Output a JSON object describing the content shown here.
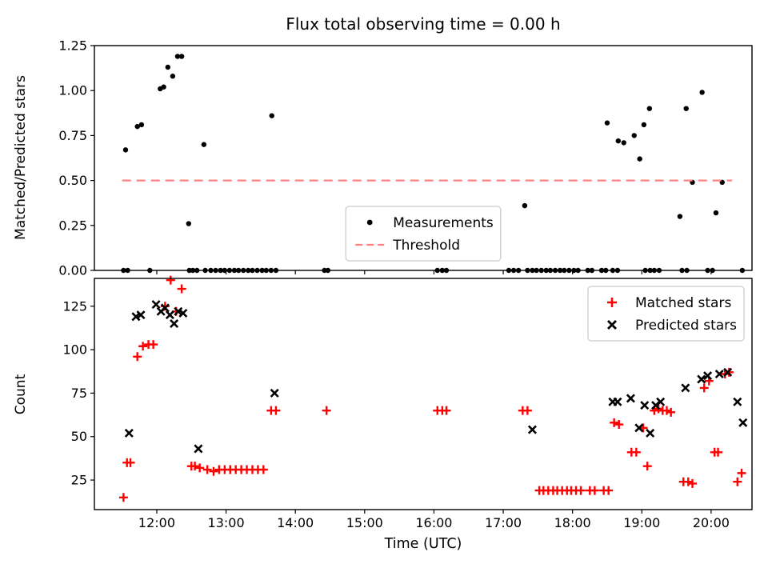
{
  "figure": {
    "title": "Flux total observing time = 0.00 h",
    "xlabel": "Time (UTC)",
    "x_tick_labels": [
      "12:00",
      "13:00",
      "14:00",
      "15:00",
      "16:00",
      "17:00",
      "18:00",
      "19:00",
      "20:00"
    ],
    "x_tick_values": [
      12,
      13,
      14,
      15,
      16,
      17,
      18,
      19,
      20
    ],
    "x_range": [
      11.1,
      20.59
    ],
    "background": "#ffffff",
    "axis_color": "#000000"
  },
  "chart_data": [
    {
      "type": "scatter",
      "name": "ratio-plot",
      "title": "Flux total observing time = 0.00 h",
      "ylabel": "Matched/Predicted stars",
      "ylim": [
        0,
        1.25
      ],
      "y_tick_values": [
        0,
        0.25,
        0.5,
        0.75,
        1.0,
        1.25
      ],
      "y_tick_labels": [
        "0.00",
        "0.25",
        "0.50",
        "0.75",
        "1.00",
        "1.25"
      ],
      "legend_position": "lower-center",
      "grid": false,
      "series": [
        {
          "name": "Measurements",
          "marker": "dot",
          "color": "#000000",
          "x": [
            11.52,
            11.58,
            11.9,
            12.47,
            12.52,
            12.58,
            12.7,
            12.78,
            12.85,
            12.92,
            12.98,
            13.05,
            13.12,
            13.18,
            13.25,
            13.32,
            13.38,
            13.45,
            13.52,
            13.58,
            13.65,
            13.72,
            14.42,
            14.47,
            16.05,
            16.12,
            16.18,
            17.08,
            17.15,
            17.22,
            17.35,
            17.42,
            17.48,
            17.55,
            17.62,
            17.68,
            17.75,
            17.82,
            17.88,
            17.95,
            18.02,
            18.08,
            18.22,
            18.28,
            18.42,
            18.48,
            18.58,
            18.65,
            19.05,
            19.12,
            19.18,
            19.25,
            19.58,
            19.65,
            19.95,
            20.02,
            20.45,
            11.55,
            11.72,
            11.78,
            12.05,
            12.1,
            12.16,
            12.23,
            12.3,
            12.36,
            12.46,
            12.68,
            13.66,
            17.31,
            18.5,
            18.66,
            18.74,
            18.89,
            18.97,
            19.03,
            19.11,
            19.55,
            19.64,
            19.73,
            19.87,
            20.07,
            20.16
          ],
          "y": [
            0,
            0,
            0,
            0,
            0,
            0,
            0,
            0,
            0,
            0,
            0,
            0,
            0,
            0,
            0,
            0,
            0,
            0,
            0,
            0,
            0,
            0,
            0,
            0,
            0,
            0,
            0,
            0,
            0,
            0,
            0,
            0,
            0,
            0,
            0,
            0,
            0,
            0,
            0,
            0,
            0,
            0,
            0,
            0,
            0,
            0,
            0,
            0,
            0,
            0,
            0,
            0,
            0,
            0,
            0,
            0,
            0,
            0.67,
            0.8,
            0.81,
            1.01,
            1.02,
            1.13,
            1.08,
            1.19,
            1.19,
            0.26,
            0.7,
            0.86,
            0.36,
            0.82,
            0.72,
            0.71,
            0.75,
            0.62,
            0.81,
            0.9,
            0.3,
            0.9,
            0.49,
            0.99,
            0.32,
            0.49
          ]
        },
        {
          "name": "Threshold",
          "marker": "dashed-line",
          "color": "#ff8080",
          "x": [
            11.5,
            20.3
          ],
          "y": [
            0.5,
            0.5
          ]
        }
      ]
    },
    {
      "type": "scatter",
      "name": "count-plot",
      "ylabel": "Count",
      "xlabel": "Time (UTC)",
      "ylim": [
        8,
        141
      ],
      "y_tick_values": [
        25,
        50,
        75,
        100,
        125
      ],
      "y_tick_labels": [
        "25",
        "50",
        "75",
        "100",
        "125"
      ],
      "legend_position": "upper-right",
      "grid": false,
      "series": [
        {
          "name": "Matched stars",
          "marker": "plus",
          "color": "#ff0000",
          "x": [
            11.52,
            11.57,
            11.62,
            11.72,
            11.8,
            11.88,
            11.95,
            12.12,
            12.2,
            12.28,
            12.36,
            12.5,
            12.55,
            12.62,
            12.73,
            12.82,
            12.9,
            12.98,
            13.06,
            13.14,
            13.22,
            13.3,
            13.38,
            13.46,
            13.54,
            13.65,
            13.72,
            14.45,
            16.05,
            16.12,
            16.18,
            17.28,
            17.35,
            17.52,
            17.58,
            17.65,
            17.72,
            17.78,
            17.85,
            17.92,
            17.98,
            18.05,
            18.12,
            18.25,
            18.32,
            18.45,
            18.52,
            18.6,
            18.67,
            18.85,
            18.92,
            19.02,
            19.08,
            19.18,
            19.24,
            19.3,
            19.36,
            19.42,
            19.6,
            19.67,
            19.73,
            19.9,
            19.97,
            20.05,
            20.1,
            20.2,
            20.26,
            20.38,
            20.44
          ],
          "y": [
            15,
            35,
            35,
            96,
            102,
            103,
            103,
            125,
            140,
            122,
            135,
            33,
            33,
            32,
            31,
            30,
            31,
            31,
            31,
            31,
            31,
            31,
            31,
            31,
            31,
            65,
            65,
            65,
            65,
            65,
            65,
            65,
            65,
            19,
            19,
            19,
            19,
            19,
            19,
            19,
            19,
            19,
            19,
            19,
            19,
            19,
            19,
            58,
            57,
            41,
            41,
            55,
            33,
            65,
            66,
            65,
            65,
            64,
            24,
            24,
            23,
            78,
            82,
            41,
            41,
            86,
            87,
            24,
            29
          ]
        },
        {
          "name": "Predicted stars",
          "marker": "x",
          "color": "#000000",
          "x": [
            11.6,
            11.7,
            11.77,
            11.99,
            12.06,
            12.12,
            12.19,
            12.25,
            12.31,
            12.38,
            12.6,
            13.7,
            17.42,
            18.58,
            18.65,
            18.84,
            18.96,
            19.04,
            19.12,
            19.2,
            19.27,
            19.63,
            19.86,
            19.95,
            20.12,
            20.24,
            20.38,
            20.46
          ],
          "y": [
            52,
            119,
            120,
            126,
            122,
            124,
            120,
            115,
            122,
            121,
            43,
            75,
            54,
            70,
            70,
            72,
            55,
            68,
            52,
            68,
            70,
            78,
            83,
            85,
            86,
            87,
            70,
            58
          ]
        }
      ]
    }
  ]
}
